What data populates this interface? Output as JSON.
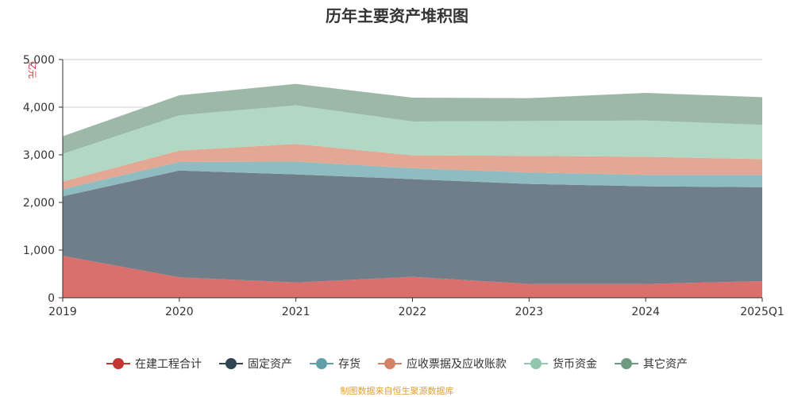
{
  "chart_data": {
    "type": "area",
    "stacked": true,
    "title": "历年主要资产堆积图",
    "unit_label": "亿元",
    "categories": [
      "2019",
      "2020",
      "2021",
      "2022",
      "2023",
      "2024",
      "2025Q1"
    ],
    "y_ticks": [
      "0",
      "1,000",
      "2,000",
      "3,000",
      "4,000",
      "5,000"
    ],
    "ylim": [
      0,
      5000
    ],
    "grid": true,
    "legend_position": "bottom",
    "series": [
      {
        "name": "在建工程合计",
        "color": "#c23531",
        "fill": "#d9706d",
        "values": [
          880,
          430,
          320,
          440,
          290,
          290,
          350
        ]
      },
      {
        "name": "固定资产",
        "color": "#2f4554",
        "fill": "#6f7e88",
        "values": [
          1250,
          2240,
          2270,
          2050,
          2100,
          2050,
          1970
        ]
      },
      {
        "name": "存货",
        "color": "#61a0a8",
        "fill": "#8fbcc1",
        "values": [
          150,
          180,
          270,
          230,
          240,
          240,
          260
        ]
      },
      {
        "name": "应收票据及应收账款",
        "color": "#d48265",
        "fill": "#e2a893",
        "values": [
          160,
          240,
          370,
          270,
          350,
          380,
          330
        ]
      },
      {
        "name": "货币资金",
        "color": "#91c7ae",
        "fill": "#b0d8c5",
        "values": [
          580,
          740,
          810,
          710,
          730,
          760,
          720
        ]
      },
      {
        "name": "其它资产",
        "color": "#6e9b80",
        "fill": "#9db8a6",
        "values": [
          370,
          420,
          450,
          500,
          480,
          580,
          580
        ]
      }
    ],
    "source_note": "制图数据来自恒生聚源数据库"
  }
}
